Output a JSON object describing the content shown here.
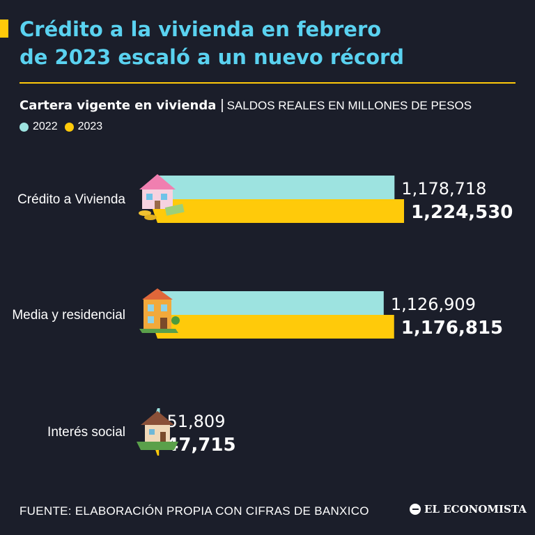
{
  "title": {
    "line1": "Crédito a la vivienda en febrero",
    "line2": "de 2023 escaló a un nuevo récord"
  },
  "subtitle": {
    "main": "Cartera vigente en vivienda",
    "separator": "|",
    "unit": "SALDOS REALES EN MILLONES DE PESOS"
  },
  "colors": {
    "background": "#1b1e2a",
    "title": "#5ad2f0",
    "series_2022": "#9de3e0",
    "series_2023": "#ffca0a"
  },
  "chart_data": {
    "type": "bar",
    "orientation": "horizontal",
    "categories": [
      "Crédito a Vivienda",
      "Media y residencial",
      "Interés social"
    ],
    "series": [
      {
        "name": "2022",
        "values": [
          1178718,
          1126909,
          51809
        ],
        "labels": [
          "1,178,718",
          "1,126,909",
          "51,809"
        ]
      },
      {
        "name": "2023",
        "values": [
          1224530,
          1176815,
          47715
        ],
        "labels": [
          "1,224,530",
          "1,176,815",
          "47,715"
        ]
      }
    ],
    "title": "Cartera vigente en vivienda",
    "xlabel": "",
    "ylabel": "",
    "legend": "top-left",
    "grid": false,
    "icons": [
      "house-with-money-icon",
      "residential-building-icon",
      "small-house-icon"
    ]
  },
  "footer": {
    "source": "FUENTE: ELABORACIÓN PROPIA CON CIFRAS DE BANXICO",
    "brand": "EL ECONOMISTA"
  }
}
